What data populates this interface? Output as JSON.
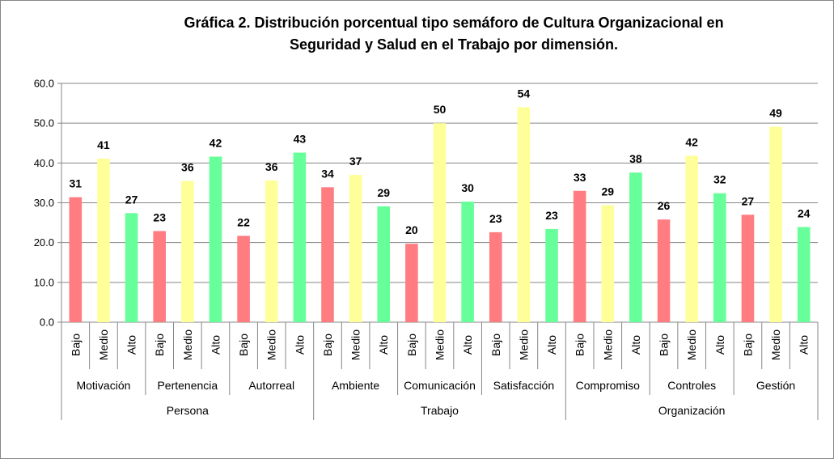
{
  "chart_data": {
    "type": "bar",
    "title_lines": [
      "Gráfica 2. Distribución porcentual tipo semáforo de Cultura Organizacional en",
      "Seguridad y Salud en el Trabajo por dimensión."
    ],
    "ylim": [
      0,
      60
    ],
    "y_ticks": [
      "0.0",
      "10.0",
      "20.0",
      "30.0",
      "40.0",
      "50.0",
      "60.0"
    ],
    "grid": true,
    "level_colors": {
      "Bajo": "#ff7c80",
      "Medio": "#ffff99",
      "Alto": "#66ff99"
    },
    "levels": [
      "Bajo",
      "Medio",
      "Alto"
    ],
    "groups": [
      {
        "name": "Persona",
        "dimensions": [
          {
            "name": "Motivación",
            "values": [
              31.4,
              41.1,
              27.4
            ],
            "labels": [
              "31",
              "41",
              "27"
            ]
          },
          {
            "name": "Pertenencia",
            "values": [
              22.9,
              35.5,
              41.6
            ],
            "labels": [
              "23",
              "36",
              "42"
            ]
          },
          {
            "name": "Autorreal",
            "values": [
              21.7,
              35.6,
              42.6
            ],
            "labels": [
              "22",
              "36",
              "43"
            ]
          }
        ]
      },
      {
        "name": "Trabajo",
        "dimensions": [
          {
            "name": "Ambiente",
            "values": [
              33.9,
              37.0,
              29.1
            ],
            "labels": [
              "34",
              "37",
              "29"
            ]
          },
          {
            "name": "Comunicación",
            "values": [
              19.7,
              50.0,
              30.3
            ],
            "labels": [
              "20",
              "50",
              "30"
            ]
          },
          {
            "name": "Satisfacción",
            "values": [
              22.6,
              54.0,
              23.4
            ],
            "labels": [
              "23",
              "54",
              "23"
            ]
          }
        ]
      },
      {
        "name": "Organización",
        "dimensions": [
          {
            "name": "Compromiso",
            "values": [
              33.0,
              29.4,
              37.6
            ],
            "labels": [
              "33",
              "29",
              "38"
            ]
          },
          {
            "name": "Controles",
            "values": [
              25.8,
              41.8,
              32.4
            ],
            "labels": [
              "26",
              "42",
              "32"
            ]
          },
          {
            "name": "Gestión",
            "values": [
              27.0,
              49.1,
              23.9
            ],
            "labels": [
              "27",
              "49",
              "24"
            ]
          }
        ]
      }
    ]
  }
}
